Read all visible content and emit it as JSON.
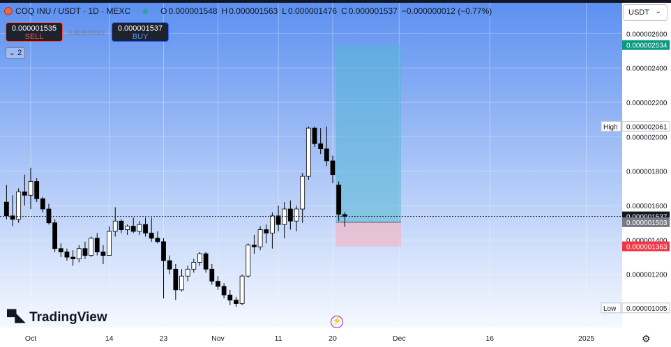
{
  "header": {
    "symbol": "COQ INU / USDT · 1D · MEXC",
    "o_label": "O",
    "o_value": "0.000001548",
    "h_label": "H",
    "h_value": "0.000001563",
    "l_label": "L",
    "l_value": "0.000001476",
    "c_label": "C",
    "c_value": "0.000001537",
    "change": "−0.000000012 (−0.77%)"
  },
  "trade": {
    "sell_price": "0.000001535",
    "sell_label": "SELL",
    "spread": "0.000000002",
    "buy_price": "0.000001537",
    "buy_label": "BUY"
  },
  "indicators_toggle": {
    "label": "2",
    "icon": "chevron-down-icon"
  },
  "currency_select": {
    "value": "USDT",
    "icon": "chevron-down-icon"
  },
  "branding": {
    "name": "TradingView",
    "icon": "tradingview-logo-icon"
  },
  "colors": {
    "up": "#ffffff",
    "down": "#000000",
    "profit_zone": "#55b6d6",
    "loss_zone": "#f0b8c8",
    "current_price": "#131722",
    "background_top": "#5b8ff0",
    "background_bottom": "#ffffff"
  },
  "chart_data": {
    "type": "candlestick",
    "y_scale": "linear",
    "ylim": [
      9.8e-07,
      2.65e-06
    ],
    "y_ticks": [
      "0.000002600",
      "0.000002400",
      "0.000002200",
      "0.000002000",
      "0.000001800",
      "0.000001600",
      "0.000001400",
      "0.000001200"
    ],
    "x_ticks": [
      {
        "label": "Oct",
        "day": 0
      },
      {
        "label": "14",
        "day": 13
      },
      {
        "label": "23",
        "day": 22
      },
      {
        "label": "Nov",
        "day": 31
      },
      {
        "label": "11",
        "day": 41
      },
      {
        "label": "20",
        "day": 50
      },
      {
        "label": "Dec",
        "day": 61
      },
      {
        "label": "16",
        "day": 76
      },
      {
        "label": "2025",
        "day": 92
      }
    ],
    "price_labels": [
      {
        "label": "",
        "value": "0.000002534",
        "price": 2.534e-06,
        "kind": "target"
      },
      {
        "label": "High",
        "value": "0.000002061",
        "price": 2.061e-06,
        "kind": "high"
      },
      {
        "label": "",
        "value": "0.000001537",
        "price": 1.537e-06,
        "kind": "current"
      },
      {
        "label": "",
        "value": "0.000001503",
        "price": 1.503e-06,
        "kind": "entry"
      },
      {
        "label": "",
        "value": "0.000001363",
        "price": 1.363e-06,
        "kind": "stop"
      },
      {
        "label": "Low",
        "value": "0.000001005",
        "price": 1.005e-06,
        "kind": "low"
      }
    ],
    "position": {
      "type": "long",
      "start_day": 51,
      "end_day": 62,
      "entry": 1.503e-06,
      "target": 2.534e-06,
      "stop": 1.363e-06
    },
    "candles": [
      [
        -4,
        1.62e-06,
        1.72e-06,
        1.52e-06,
        1.54e-06
      ],
      [
        -3,
        1.54e-06,
        1.66e-06,
        1.48e-06,
        1.52e-06
      ],
      [
        -2,
        1.52e-06,
        1.7e-06,
        1.5e-06,
        1.68e-06
      ],
      [
        -1,
        1.68e-06,
        1.78e-06,
        1.6e-06,
        1.66e-06
      ],
      [
        0,
        1.66e-06,
        1.82e-06,
        1.58e-06,
        1.74e-06
      ],
      [
        1,
        1.74e-06,
        1.76e-06,
        1.62e-06,
        1.64e-06
      ],
      [
        2,
        1.64e-06,
        1.65e-06,
        1.56e-06,
        1.58e-06
      ],
      [
        3,
        1.58e-06,
        1.61e-06,
        1.49e-06,
        1.5e-06
      ],
      [
        4,
        1.5e-06,
        1.52e-06,
        1.33e-06,
        1.35e-06
      ],
      [
        5,
        1.35e-06,
        1.38e-06,
        1.3e-06,
        1.33e-06
      ],
      [
        6,
        1.33e-06,
        1.35e-06,
        1.28e-06,
        1.3e-06
      ],
      [
        7,
        1.3e-06,
        1.34e-06,
        1.25e-06,
        1.29e-06
      ],
      [
        8,
        1.29e-06,
        1.37e-06,
        1.27e-06,
        1.35e-06
      ],
      [
        9,
        1.35e-06,
        1.39e-06,
        1.29e-06,
        1.31e-06
      ],
      [
        10,
        1.31e-06,
        1.42e-06,
        1.3e-06,
        1.41e-06
      ],
      [
        11,
        1.41e-06,
        1.44e-06,
        1.31e-06,
        1.33e-06
      ],
      [
        12,
        1.33e-06,
        1.37e-06,
        1.26e-06,
        1.31e-06
      ],
      [
        13,
        1.31e-06,
        1.48e-06,
        1.31e-06,
        1.45e-06
      ],
      [
        14,
        1.45e-06,
        1.59e-06,
        1.42e-06,
        1.51e-06
      ],
      [
        15,
        1.51e-06,
        1.52e-06,
        1.44e-06,
        1.46e-06
      ],
      [
        16,
        1.46e-06,
        1.49e-06,
        1.43e-06,
        1.48e-06
      ],
      [
        17,
        1.48e-06,
        1.53e-06,
        1.44e-06,
        1.45e-06
      ],
      [
        18,
        1.45e-06,
        1.51e-06,
        1.43e-06,
        1.49e-06
      ],
      [
        19,
        1.49e-06,
        1.53e-06,
        1.42e-06,
        1.44e-06
      ],
      [
        20,
        1.44e-06,
        1.53e-06,
        1.39e-06,
        1.41e-06
      ],
      [
        21,
        1.41e-06,
        1.45e-06,
        1.38e-06,
        1.39e-06
      ],
      [
        22,
        1.39e-06,
        1.41e-06,
        1.06e-06,
        1.28e-06
      ],
      [
        23,
        1.28e-06,
        1.31e-06,
        1.2e-06,
        1.23e-06
      ],
      [
        24,
        1.23e-06,
        1.26e-06,
        1.05e-06,
        1.11e-06
      ],
      [
        25,
        1.11e-06,
        1.23e-06,
        1.1e-06,
        1.19e-06
      ],
      [
        26,
        1.19e-06,
        1.25e-06,
        1.16e-06,
        1.23e-06
      ],
      [
        27,
        1.23e-06,
        1.29e-06,
        1.21e-06,
        1.27e-06
      ],
      [
        28,
        1.27e-06,
        1.33e-06,
        1.25e-06,
        1.32e-06
      ],
      [
        29,
        1.32e-06,
        1.33e-06,
        1.21e-06,
        1.23e-06
      ],
      [
        30,
        1.23e-06,
        1.26e-06,
        1.14e-06,
        1.16e-06
      ],
      [
        31,
        1.16e-06,
        1.19e-06,
        1.11e-06,
        1.13e-06
      ],
      [
        32,
        1.13e-06,
        1.15e-06,
        1.06e-06,
        1.08e-06
      ],
      [
        33,
        1.08e-06,
        1.11e-06,
        1.02e-06,
        1.05e-06
      ],
      [
        34,
        1.05e-06,
        1.07e-06,
        1.01e-06,
        1.03e-06
      ],
      [
        35,
        1.03e-06,
        1.2e-06,
        1.02e-06,
        1.19e-06
      ],
      [
        36,
        1.19e-06,
        1.38e-06,
        1.18e-06,
        1.37e-06
      ],
      [
        37,
        1.37e-06,
        1.43e-06,
        1.32e-06,
        1.36e-06
      ],
      [
        38,
        1.36e-06,
        1.48e-06,
        1.34e-06,
        1.46e-06
      ],
      [
        39,
        1.46e-06,
        1.49e-06,
        1.38e-06,
        1.44e-06
      ],
      [
        40,
        1.44e-06,
        1.56e-06,
        1.35e-06,
        1.54e-06
      ],
      [
        41,
        1.54e-06,
        1.6e-06,
        1.45e-06,
        1.49e-06
      ],
      [
        42,
        1.49e-06,
        1.62e-06,
        1.41e-06,
        1.58e-06
      ],
      [
        43,
        1.58e-06,
        1.63e-06,
        1.46e-06,
        1.51e-06
      ],
      [
        44,
        1.51e-06,
        1.6e-06,
        1.45e-06,
        1.58e-06
      ],
      [
        45,
        1.58e-06,
        1.79e-06,
        1.5e-06,
        1.77e-06
      ],
      [
        46,
        1.77e-06,
        2.06e-06,
        1.75e-06,
        2.05e-06
      ],
      [
        47,
        2.05e-06,
        2.06e-06,
        1.94e-06,
        1.96e-06
      ],
      [
        48,
        1.96e-06,
        2.05e-06,
        1.9e-06,
        1.93e-06
      ],
      [
        49,
        1.93e-06,
        2.06e-06,
        1.83e-06,
        1.86e-06
      ],
      [
        50,
        1.86e-06,
        1.89e-06,
        1.73e-06,
        1.78e-06
      ],
      [
        51,
        1.72e-06,
        1.74e-06,
        1.51e-06,
        1.55e-06
      ],
      [
        52,
        1.548e-06,
        1.563e-06,
        1.476e-06,
        1.537e-06
      ]
    ]
  }
}
